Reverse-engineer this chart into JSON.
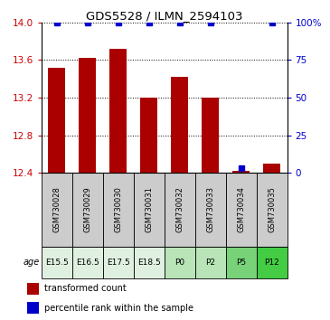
{
  "title": "GDS5528 / ILMN_2594103",
  "samples": [
    "GSM730028",
    "GSM730029",
    "GSM730030",
    "GSM730031",
    "GSM730032",
    "GSM730033",
    "GSM730034",
    "GSM730035"
  ],
  "ages": [
    "E15.5",
    "E16.5",
    "E17.5",
    "E18.5",
    "P0",
    "P2",
    "P5",
    "P12"
  ],
  "age_colors": [
    "#e0f0e0",
    "#e0f0e0",
    "#e0f0e0",
    "#e0f0e0",
    "#b8e4b8",
    "#b8e4b8",
    "#78d278",
    "#44cc44"
  ],
  "bar_values": [
    13.52,
    13.62,
    13.72,
    13.2,
    13.42,
    13.2,
    12.42,
    12.5
  ],
  "percentile_values": [
    100,
    100,
    100,
    100,
    100,
    100,
    3,
    100
  ],
  "ylim_left": [
    12.4,
    14.0
  ],
  "ylim_right": [
    0,
    100
  ],
  "bar_color": "#aa0000",
  "percentile_color": "#0000cc",
  "yticks_left": [
    12.4,
    12.8,
    13.2,
    13.6,
    14.0
  ],
  "yticks_right": [
    0,
    25,
    50,
    75,
    100
  ],
  "ytick_labels_right": [
    "0",
    "25",
    "50",
    "75",
    "100%"
  ],
  "left_tick_color": "#cc0000",
  "right_tick_color": "#0000cc",
  "sample_box_color": "#cccccc",
  "bar_width": 0.55
}
